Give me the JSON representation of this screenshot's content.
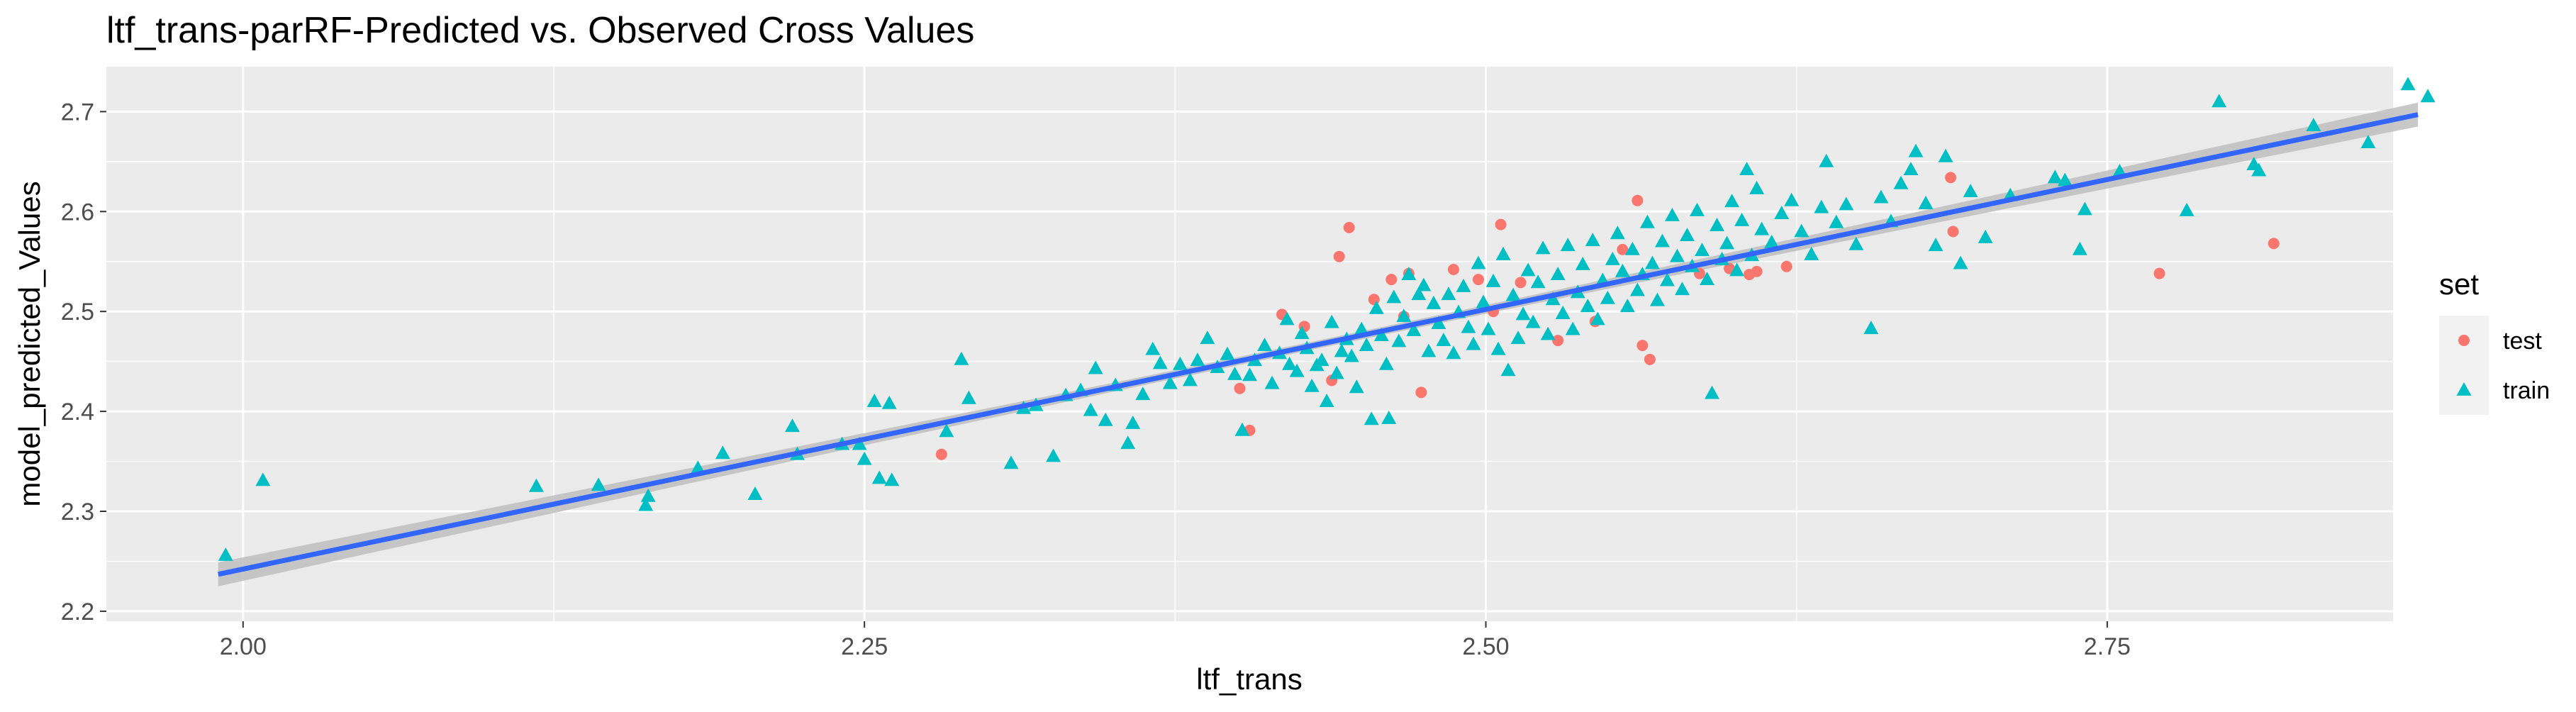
{
  "chart_data": {
    "type": "scatter",
    "title": "ltf_trans-parRF-Predicted vs. Observed Cross Values",
    "xlabel": "ltf_trans",
    "ylabel": "model_predicted_Values",
    "xlim": [
      1.945,
      2.865
    ],
    "ylim": [
      2.19,
      2.745
    ],
    "x_ticks": [
      2.0,
      2.25,
      2.5,
      2.75
    ],
    "x_tick_labels": [
      "2.00",
      "2.25",
      "2.50",
      "2.75"
    ],
    "y_ticks": [
      2.2,
      2.3,
      2.4,
      2.5,
      2.6,
      2.7
    ],
    "y_tick_labels": [
      "2.2",
      "2.3",
      "2.4",
      "2.5",
      "2.6",
      "2.7"
    ],
    "grid": true,
    "legend": {
      "title": "set",
      "position": "right",
      "entries": [
        {
          "label": "test",
          "shape": "circle",
          "color": "#F8766D"
        },
        {
          "label": "train",
          "shape": "triangle",
          "color": "#00BFC4"
        }
      ]
    },
    "colors": {
      "panel": "#EBEBEB",
      "grid": "#FFFFFF",
      "test": "#F8766D",
      "train": "#00BFC4",
      "fit_line": "#3366FF",
      "ribbon": "#BEBEBE"
    },
    "fit": {
      "x_range": [
        1.99,
        2.875
      ],
      "y_start": 2.237,
      "y_end": 2.697,
      "ci_halfwidth_ends": 0.012,
      "ci_halfwidth_center": 0.004
    },
    "series": [
      {
        "name": "test",
        "marker": "circle",
        "color": "#F8766D",
        "points": [
          [
            2.281,
            2.357
          ],
          [
            2.401,
            2.423
          ],
          [
            2.405,
            2.381
          ],
          [
            2.418,
            2.497
          ],
          [
            2.427,
            2.485
          ],
          [
            2.438,
            2.431
          ],
          [
            2.441,
            2.555
          ],
          [
            2.445,
            2.584
          ],
          [
            2.455,
            2.512
          ],
          [
            2.462,
            2.532
          ],
          [
            2.467,
            2.495
          ],
          [
            2.469,
            2.538
          ],
          [
            2.474,
            2.419
          ],
          [
            2.487,
            2.542
          ],
          [
            2.497,
            2.532
          ],
          [
            2.503,
            2.5
          ],
          [
            2.506,
            2.587
          ],
          [
            2.514,
            2.529
          ],
          [
            2.529,
            2.471
          ],
          [
            2.544,
            2.49
          ],
          [
            2.555,
            2.562
          ],
          [
            2.561,
            2.611
          ],
          [
            2.563,
            2.466
          ],
          [
            2.566,
            2.452
          ],
          [
            2.586,
            2.538
          ],
          [
            2.598,
            2.543
          ],
          [
            2.606,
            2.537
          ],
          [
            2.609,
            2.54
          ],
          [
            2.621,
            2.545
          ],
          [
            2.687,
            2.634
          ],
          [
            2.688,
            2.58
          ],
          [
            2.771,
            2.538
          ],
          [
            2.817,
            2.568
          ]
        ]
      },
      {
        "name": "train",
        "marker": "triangle",
        "color": "#00BFC4",
        "points": [
          [
            1.993,
            2.256
          ],
          [
            2.008,
            2.331
          ],
          [
            2.118,
            2.325
          ],
          [
            2.143,
            2.326
          ],
          [
            2.162,
            2.306
          ],
          [
            2.163,
            2.315
          ],
          [
            2.183,
            2.343
          ],
          [
            2.193,
            2.358
          ],
          [
            2.206,
            2.317
          ],
          [
            2.221,
            2.385
          ],
          [
            2.223,
            2.357
          ],
          [
            2.241,
            2.367
          ],
          [
            2.248,
            2.367
          ],
          [
            2.25,
            2.352
          ],
          [
            2.254,
            2.41
          ],
          [
            2.256,
            2.333
          ],
          [
            2.26,
            2.408
          ],
          [
            2.261,
            2.331
          ],
          [
            2.283,
            2.38
          ],
          [
            2.289,
            2.452
          ],
          [
            2.292,
            2.413
          ],
          [
            2.309,
            2.348
          ],
          [
            2.314,
            2.403
          ],
          [
            2.319,
            2.406
          ],
          [
            2.326,
            2.355
          ],
          [
            2.331,
            2.416
          ],
          [
            2.337,
            2.421
          ],
          [
            2.341,
            2.401
          ],
          [
            2.343,
            2.443
          ],
          [
            2.347,
            2.391
          ],
          [
            2.351,
            2.426
          ],
          [
            2.356,
            2.368
          ],
          [
            2.358,
            2.388
          ],
          [
            2.362,
            2.417
          ],
          [
            2.366,
            2.462
          ],
          [
            2.369,
            2.448
          ],
          [
            2.373,
            2.428
          ],
          [
            2.377,
            2.447
          ],
          [
            2.381,
            2.431
          ],
          [
            2.384,
            2.451
          ],
          [
            2.388,
            2.473
          ],
          [
            2.392,
            2.444
          ],
          [
            2.396,
            2.457
          ],
          [
            2.399,
            2.437
          ],
          [
            2.402,
            2.381
          ],
          [
            2.405,
            2.436
          ],
          [
            2.407,
            2.451
          ],
          [
            2.411,
            2.466
          ],
          [
            2.414,
            2.428
          ],
          [
            2.417,
            2.458
          ],
          [
            2.42,
            2.492
          ],
          [
            2.421,
            2.447
          ],
          [
            2.424,
            2.44
          ],
          [
            2.426,
            2.478
          ],
          [
            2.428,
            2.463
          ],
          [
            2.43,
            2.425
          ],
          [
            2.432,
            2.446
          ],
          [
            2.434,
            2.451
          ],
          [
            2.436,
            2.41
          ],
          [
            2.438,
            2.489
          ],
          [
            2.44,
            2.438
          ],
          [
            2.442,
            2.46
          ],
          [
            2.444,
            2.472
          ],
          [
            2.446,
            2.455
          ],
          [
            2.448,
            2.424
          ],
          [
            2.45,
            2.482
          ],
          [
            2.452,
            2.466
          ],
          [
            2.454,
            2.392
          ],
          [
            2.456,
            2.503
          ],
          [
            2.458,
            2.476
          ],
          [
            2.46,
            2.447
          ],
          [
            2.461,
            2.393
          ],
          [
            2.463,
            2.514
          ],
          [
            2.465,
            2.47
          ],
          [
            2.467,
            2.495
          ],
          [
            2.469,
            2.537
          ],
          [
            2.471,
            2.481
          ],
          [
            2.473,
            2.517
          ],
          [
            2.475,
            2.526
          ],
          [
            2.477,
            2.46
          ],
          [
            2.479,
            2.508
          ],
          [
            2.481,
            2.488
          ],
          [
            2.483,
            2.471
          ],
          [
            2.485,
            2.517
          ],
          [
            2.487,
            2.458
          ],
          [
            2.489,
            2.499
          ],
          [
            2.491,
            2.525
          ],
          [
            2.493,
            2.484
          ],
          [
            2.495,
            2.467
          ],
          [
            2.497,
            2.548
          ],
          [
            2.499,
            2.509
          ],
          [
            2.501,
            2.482
          ],
          [
            2.503,
            2.53
          ],
          [
            2.505,
            2.462
          ],
          [
            2.507,
            2.557
          ],
          [
            2.509,
            2.441
          ],
          [
            2.511,
            2.516
          ],
          [
            2.513,
            2.473
          ],
          [
            2.515,
            2.497
          ],
          [
            2.517,
            2.541
          ],
          [
            2.519,
            2.489
          ],
          [
            2.521,
            2.529
          ],
          [
            2.523,
            2.563
          ],
          [
            2.525,
            2.477
          ],
          [
            2.527,
            2.512
          ],
          [
            2.529,
            2.537
          ],
          [
            2.531,
            2.498
          ],
          [
            2.533,
            2.566
          ],
          [
            2.535,
            2.482
          ],
          [
            2.537,
            2.519
          ],
          [
            2.539,
            2.547
          ],
          [
            2.541,
            2.505
          ],
          [
            2.543,
            2.571
          ],
          [
            2.545,
            2.492
          ],
          [
            2.547,
            2.531
          ],
          [
            2.549,
            2.513
          ],
          [
            2.551,
            2.552
          ],
          [
            2.553,
            2.578
          ],
          [
            2.555,
            2.54
          ],
          [
            2.557,
            2.505
          ],
          [
            2.559,
            2.562
          ],
          [
            2.561,
            2.521
          ],
          [
            2.563,
            2.537
          ],
          [
            2.565,
            2.589
          ],
          [
            2.567,
            2.548
          ],
          [
            2.569,
            2.511
          ],
          [
            2.571,
            2.57
          ],
          [
            2.573,
            2.531
          ],
          [
            2.575,
            2.596
          ],
          [
            2.577,
            2.555
          ],
          [
            2.579,
            2.522
          ],
          [
            2.581,
            2.576
          ],
          [
            2.583,
            2.545
          ],
          [
            2.585,
            2.601
          ],
          [
            2.587,
            2.561
          ],
          [
            2.589,
            2.532
          ],
          [
            2.591,
            2.418
          ],
          [
            2.593,
            2.586
          ],
          [
            2.595,
            2.552
          ],
          [
            2.597,
            2.568
          ],
          [
            2.599,
            2.61
          ],
          [
            2.601,
            2.541
          ],
          [
            2.603,
            2.591
          ],
          [
            2.605,
            2.642
          ],
          [
            2.607,
            2.556
          ],
          [
            2.609,
            2.623
          ],
          [
            2.611,
            2.582
          ],
          [
            2.615,
            2.569
          ],
          [
            2.619,
            2.598
          ],
          [
            2.623,
            2.611
          ],
          [
            2.627,
            2.58
          ],
          [
            2.631,
            2.557
          ],
          [
            2.635,
            2.604
          ],
          [
            2.637,
            2.65
          ],
          [
            2.641,
            2.589
          ],
          [
            2.645,
            2.607
          ],
          [
            2.649,
            2.567
          ],
          [
            2.655,
            2.483
          ],
          [
            2.659,
            2.614
          ],
          [
            2.663,
            2.59
          ],
          [
            2.667,
            2.628
          ],
          [
            2.671,
            2.642
          ],
          [
            2.673,
            2.66
          ],
          [
            2.677,
            2.608
          ],
          [
            2.681,
            2.566
          ],
          [
            2.685,
            2.655
          ],
          [
            2.691,
            2.548
          ],
          [
            2.695,
            2.62
          ],
          [
            2.701,
            2.574
          ],
          [
            2.711,
            2.616
          ],
          [
            2.729,
            2.634
          ],
          [
            2.733,
            2.631
          ],
          [
            2.739,
            2.562
          ],
          [
            2.741,
            2.602
          ],
          [
            2.755,
            2.64
          ],
          [
            2.782,
            2.601
          ],
          [
            2.795,
            2.71
          ],
          [
            2.809,
            2.647
          ],
          [
            2.811,
            2.641
          ],
          [
            2.833,
            2.686
          ],
          [
            2.855,
            2.669
          ],
          [
            2.871,
            2.727
          ],
          [
            2.879,
            2.715
          ]
        ]
      }
    ]
  }
}
